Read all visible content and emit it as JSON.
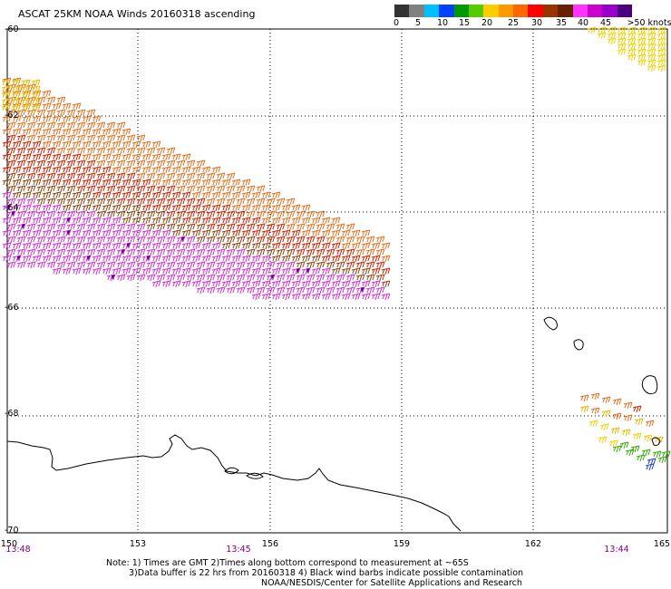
{
  "title": "ASCAT 25KM NOAA Winds 20160318 ascending",
  "colorbar": {
    "colors": [
      "#333333",
      "#808080",
      "#00bfff",
      "#0040ff",
      "#009900",
      "#55cc00",
      "#ffcc00",
      "#ff9900",
      "#ff6600",
      "#ff0000",
      "#993300",
      "#662200",
      "#ff33ff",
      "#cc00cc",
      "#9900cc",
      "#4b0082"
    ],
    "labels": [
      "0",
      "5",
      "10",
      "15",
      "20",
      "25",
      "30",
      "35",
      "40",
      "45",
      ">50 knots"
    ]
  },
  "lat_labels": [
    "-60",
    "-62",
    "-64",
    "-66",
    "-68",
    "-70"
  ],
  "lon_labels": [
    "150",
    "153",
    "156",
    "159",
    "162",
    "165"
  ],
  "time_labels": [
    "13:48",
    "13:45",
    "13:44"
  ],
  "notes": {
    "line1": "Note: 1) Times are GMT 2)Times along bottom correspond to measurement at ~65S",
    "line2": "3)Data buffer is 22 hrs from 20160318 4) Black wind barbs indicate possible contamination",
    "line3": "NOAA/NESDIS/Center for Satellite Applications and Research"
  },
  "wind_color_key": {
    "purple": "#cc33cc",
    "dark_purple": "#660099",
    "magenta": "#cc66cc",
    "brown": "#8b4513",
    "red": "#cc2200",
    "orange": "#e07020",
    "gold": "#e6b800",
    "yellow": "#f0d000",
    "green": "#33aa00",
    "blue": "#2244cc"
  }
}
